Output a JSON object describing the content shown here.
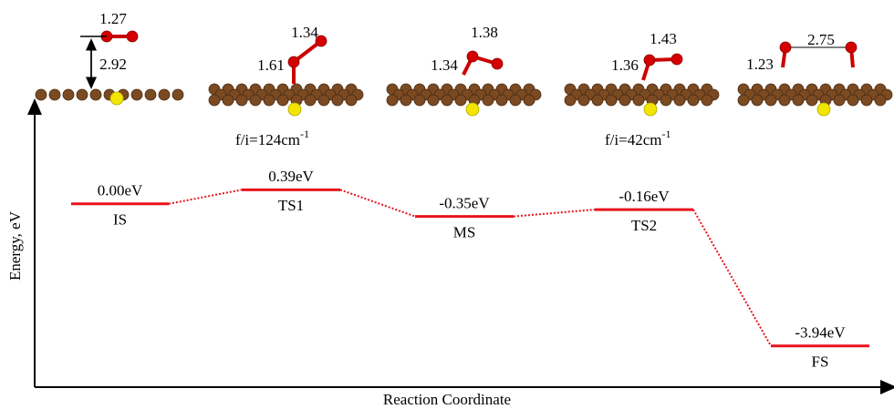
{
  "chart_data": {
    "type": "energy-diagram",
    "xlabel": "Reaction Coordinate",
    "ylabel": "Energy, eV",
    "categories": [
      "IS",
      "TS1",
      "MS",
      "TS2",
      "FS"
    ],
    "values": [
      0.0,
      0.39,
      -0.35,
      -0.16,
      -3.94
    ],
    "value_labels": [
      "0.00eV",
      "0.39eV",
      "-0.35eV",
      "-0.16eV",
      "-3.94eV"
    ],
    "ylim": [
      -4.2,
      0.6
    ],
    "color": "#e8141b",
    "bond_lengths": [
      "1.27",
      "2.92",
      "1.34",
      "1.61",
      "1.38",
      "1.34",
      "1.43",
      "1.36",
      "2.75",
      "1.23"
    ],
    "frequencies": [
      {
        "text": "f/i=124cm",
        "sup": "-1"
      },
      {
        "text": "f/i=42cm",
        "sup": "-1"
      }
    ]
  }
}
